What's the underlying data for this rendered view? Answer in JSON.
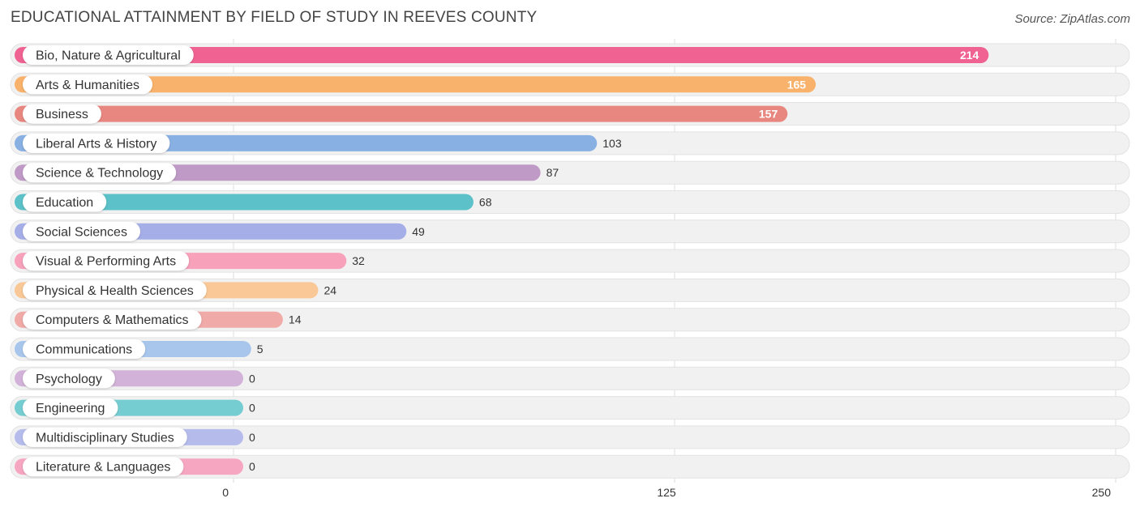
{
  "title": "EDUCATIONAL ATTAINMENT BY FIELD OF STUDY IN REEVES COUNTY",
  "source": "Source: ZipAtlas.com",
  "chart_data": {
    "type": "bar",
    "orientation": "horizontal",
    "title": "EDUCATIONAL ATTAINMENT BY FIELD OF STUDY IN REEVES COUNTY",
    "xlim": [
      0,
      250
    ],
    "x_ticks": [
      0,
      125,
      250
    ],
    "grid": true,
    "categories": [
      "Bio, Nature & Agricultural",
      "Arts & Humanities",
      "Business",
      "Liberal Arts & History",
      "Science & Technology",
      "Education",
      "Social Sciences",
      "Visual & Performing Arts",
      "Physical & Health Sciences",
      "Computers & Mathematics",
      "Communications",
      "Psychology",
      "Engineering",
      "Multidisciplinary Studies",
      "Literature & Languages"
    ],
    "values": [
      214,
      165,
      157,
      103,
      87,
      68,
      49,
      32,
      24,
      14,
      5,
      0,
      0,
      0,
      0
    ],
    "colors": [
      "#f06292",
      "#f9b26b",
      "#e8877f",
      "#88b0e3",
      "#c09ac7",
      "#5cc1c8",
      "#a6aee8",
      "#f7a1bb",
      "#f9c896",
      "#f0aaa8",
      "#a8c6ec",
      "#d2b2d8",
      "#76cdd1",
      "#b5bcec",
      "#f7a6c2"
    ]
  }
}
